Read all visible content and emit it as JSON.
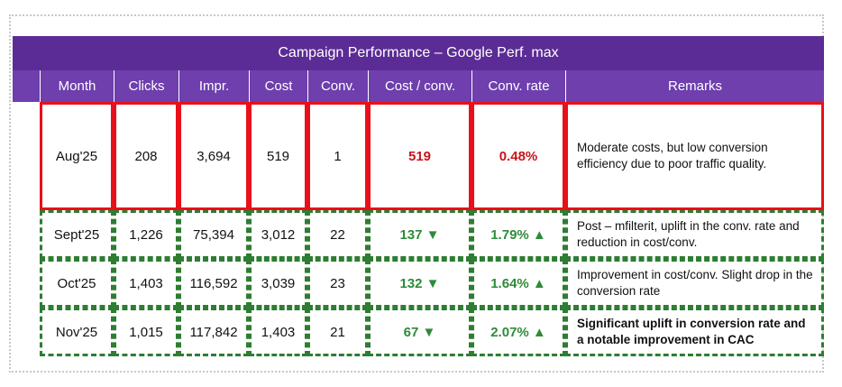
{
  "table": {
    "title": "Campaign Performance – Google Perf. max",
    "headers": [
      "Month",
      "Clicks",
      "Impr.",
      "Cost",
      "Conv.",
      "Cost / conv.",
      "Conv. rate",
      "Remarks"
    ],
    "rows": [
      {
        "month": "Aug'25",
        "clicks": "208",
        "impr": "3,694",
        "cost": "519",
        "conv": "1",
        "cost_conv": "519",
        "conv_rate": "0.48%",
        "remarks": "Moderate costs, but low conversion efficiency due to poor traffic quality.",
        "style": "red"
      },
      {
        "month": "Sept'25",
        "clicks": "1,226",
        "impr": "75,394",
        "cost": "3,012",
        "conv": "22",
        "cost_conv": "137 ▼",
        "conv_rate": "1.79% ▲",
        "remarks": "Post – mfilterit, uplift in the conv. rate and reduction in cost/conv.",
        "style": "green"
      },
      {
        "month": "Oct'25",
        "clicks": "1,403",
        "impr": "116,592",
        "cost": "3,039",
        "conv": "23",
        "cost_conv": "132 ▼",
        "conv_rate": "1.64% ▲",
        "remarks": "Improvement in cost/conv. Slight drop in the conversion rate",
        "style": "green"
      },
      {
        "month": "Nov'25",
        "clicks": "1,015",
        "impr": "117,842",
        "cost": "1,403",
        "conv": "21",
        "cost_conv": "67 ▼",
        "conv_rate": "2.07% ▲",
        "remarks": "Significant uplift in conversion rate and a notable improvement in CAC",
        "style": "green-bold"
      }
    ]
  },
  "colors": {
    "title_bg": "#5b2c95",
    "header_bg": "#6e3fad",
    "red_border": "#e8101a",
    "green_border": "#2e7d32",
    "metric_red": "#c8141c",
    "metric_green": "#2e8b3a"
  }
}
